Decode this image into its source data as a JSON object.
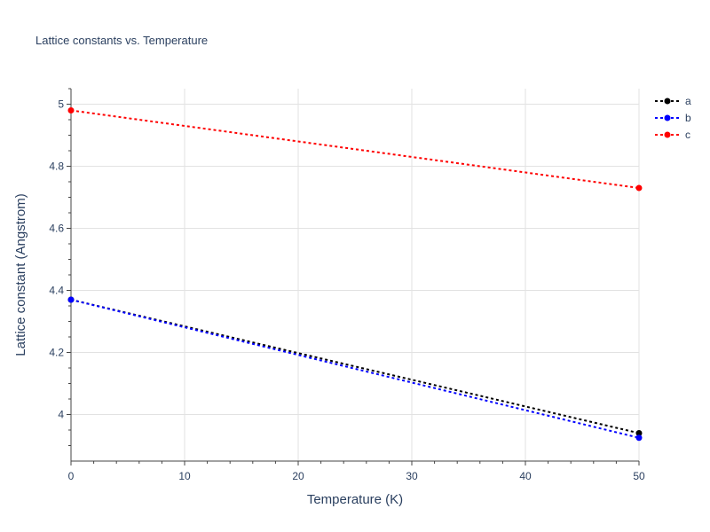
{
  "chart_data": {
    "type": "line",
    "title": "Lattice constants vs. Temperature",
    "xlabel": "Temperature (K)",
    "ylabel": "Lattice constant (Angstrom)",
    "xlim": [
      0,
      50
    ],
    "ylim": [
      3.85,
      5.05
    ],
    "x_ticks": [
      0,
      10,
      20,
      30,
      40,
      50
    ],
    "y_ticks": [
      4,
      4.2,
      4.4,
      4.6,
      4.8,
      5
    ],
    "x_tick_labels": [
      "0",
      "10",
      "20",
      "30",
      "40",
      "50"
    ],
    "y_tick_labels": [
      "4",
      "4.2",
      "4.4",
      "4.6",
      "4.8",
      "5"
    ],
    "grid": true,
    "legend_position": "top-right",
    "series": [
      {
        "name": "a",
        "color": "#000000",
        "x": [
          0,
          50
        ],
        "y": [
          4.37,
          3.94
        ]
      },
      {
        "name": "b",
        "color": "#0000ff",
        "x": [
          0,
          50
        ],
        "y": [
          4.37,
          3.925
        ]
      },
      {
        "name": "c",
        "color": "#ff0000",
        "x": [
          0,
          50
        ],
        "y": [
          4.98,
          4.73
        ]
      }
    ]
  }
}
